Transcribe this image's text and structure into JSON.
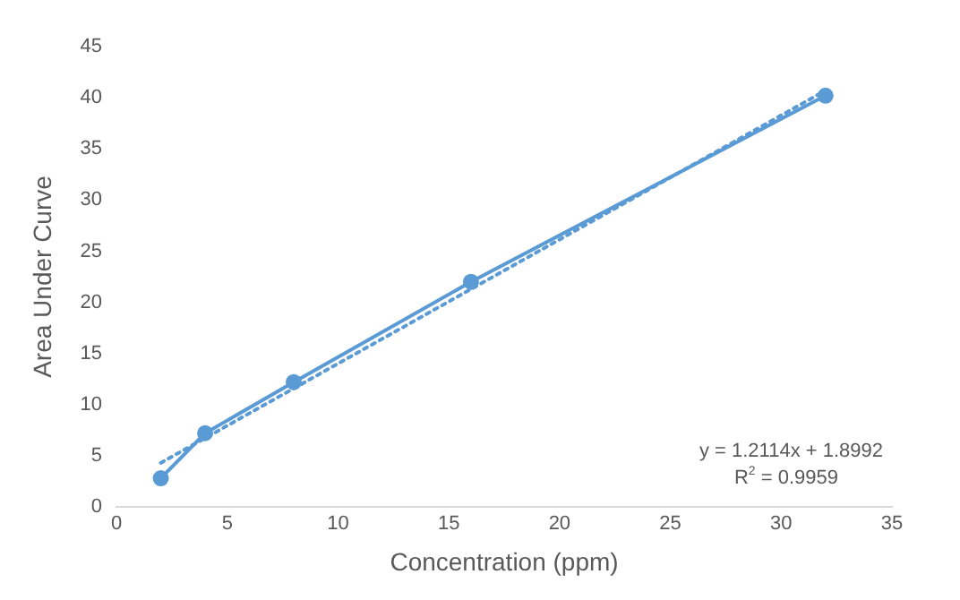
{
  "chart_data": {
    "type": "line",
    "xlabel": "Concentration (ppm)",
    "ylabel": "Area Under Curve",
    "series": [
      {
        "color": "#5b9bd5",
        "x": [
          2,
          4,
          8,
          16,
          32
        ],
        "values": [
          2.8,
          7.2,
          12.2,
          22.0,
          40.2
        ],
        "marker": "circle",
        "line_style": "solid"
      },
      {
        "color": "#5b9bd5",
        "x": [
          2,
          32
        ],
        "values": [
          4.3,
          40.7
        ],
        "marker": "none",
        "line_style": "dotted"
      }
    ],
    "xlim": [
      0,
      35
    ],
    "xticks": [
      0,
      5,
      10,
      15,
      20,
      25,
      30,
      35
    ],
    "ylim": [
      0,
      45
    ],
    "yticks": [
      0,
      5,
      10,
      15,
      20,
      25,
      30,
      35,
      40,
      45
    ],
    "annotations": [
      "y = 1.2114x + 1.8992",
      "R$^{2}$ = 0.9959"
    ]
  }
}
